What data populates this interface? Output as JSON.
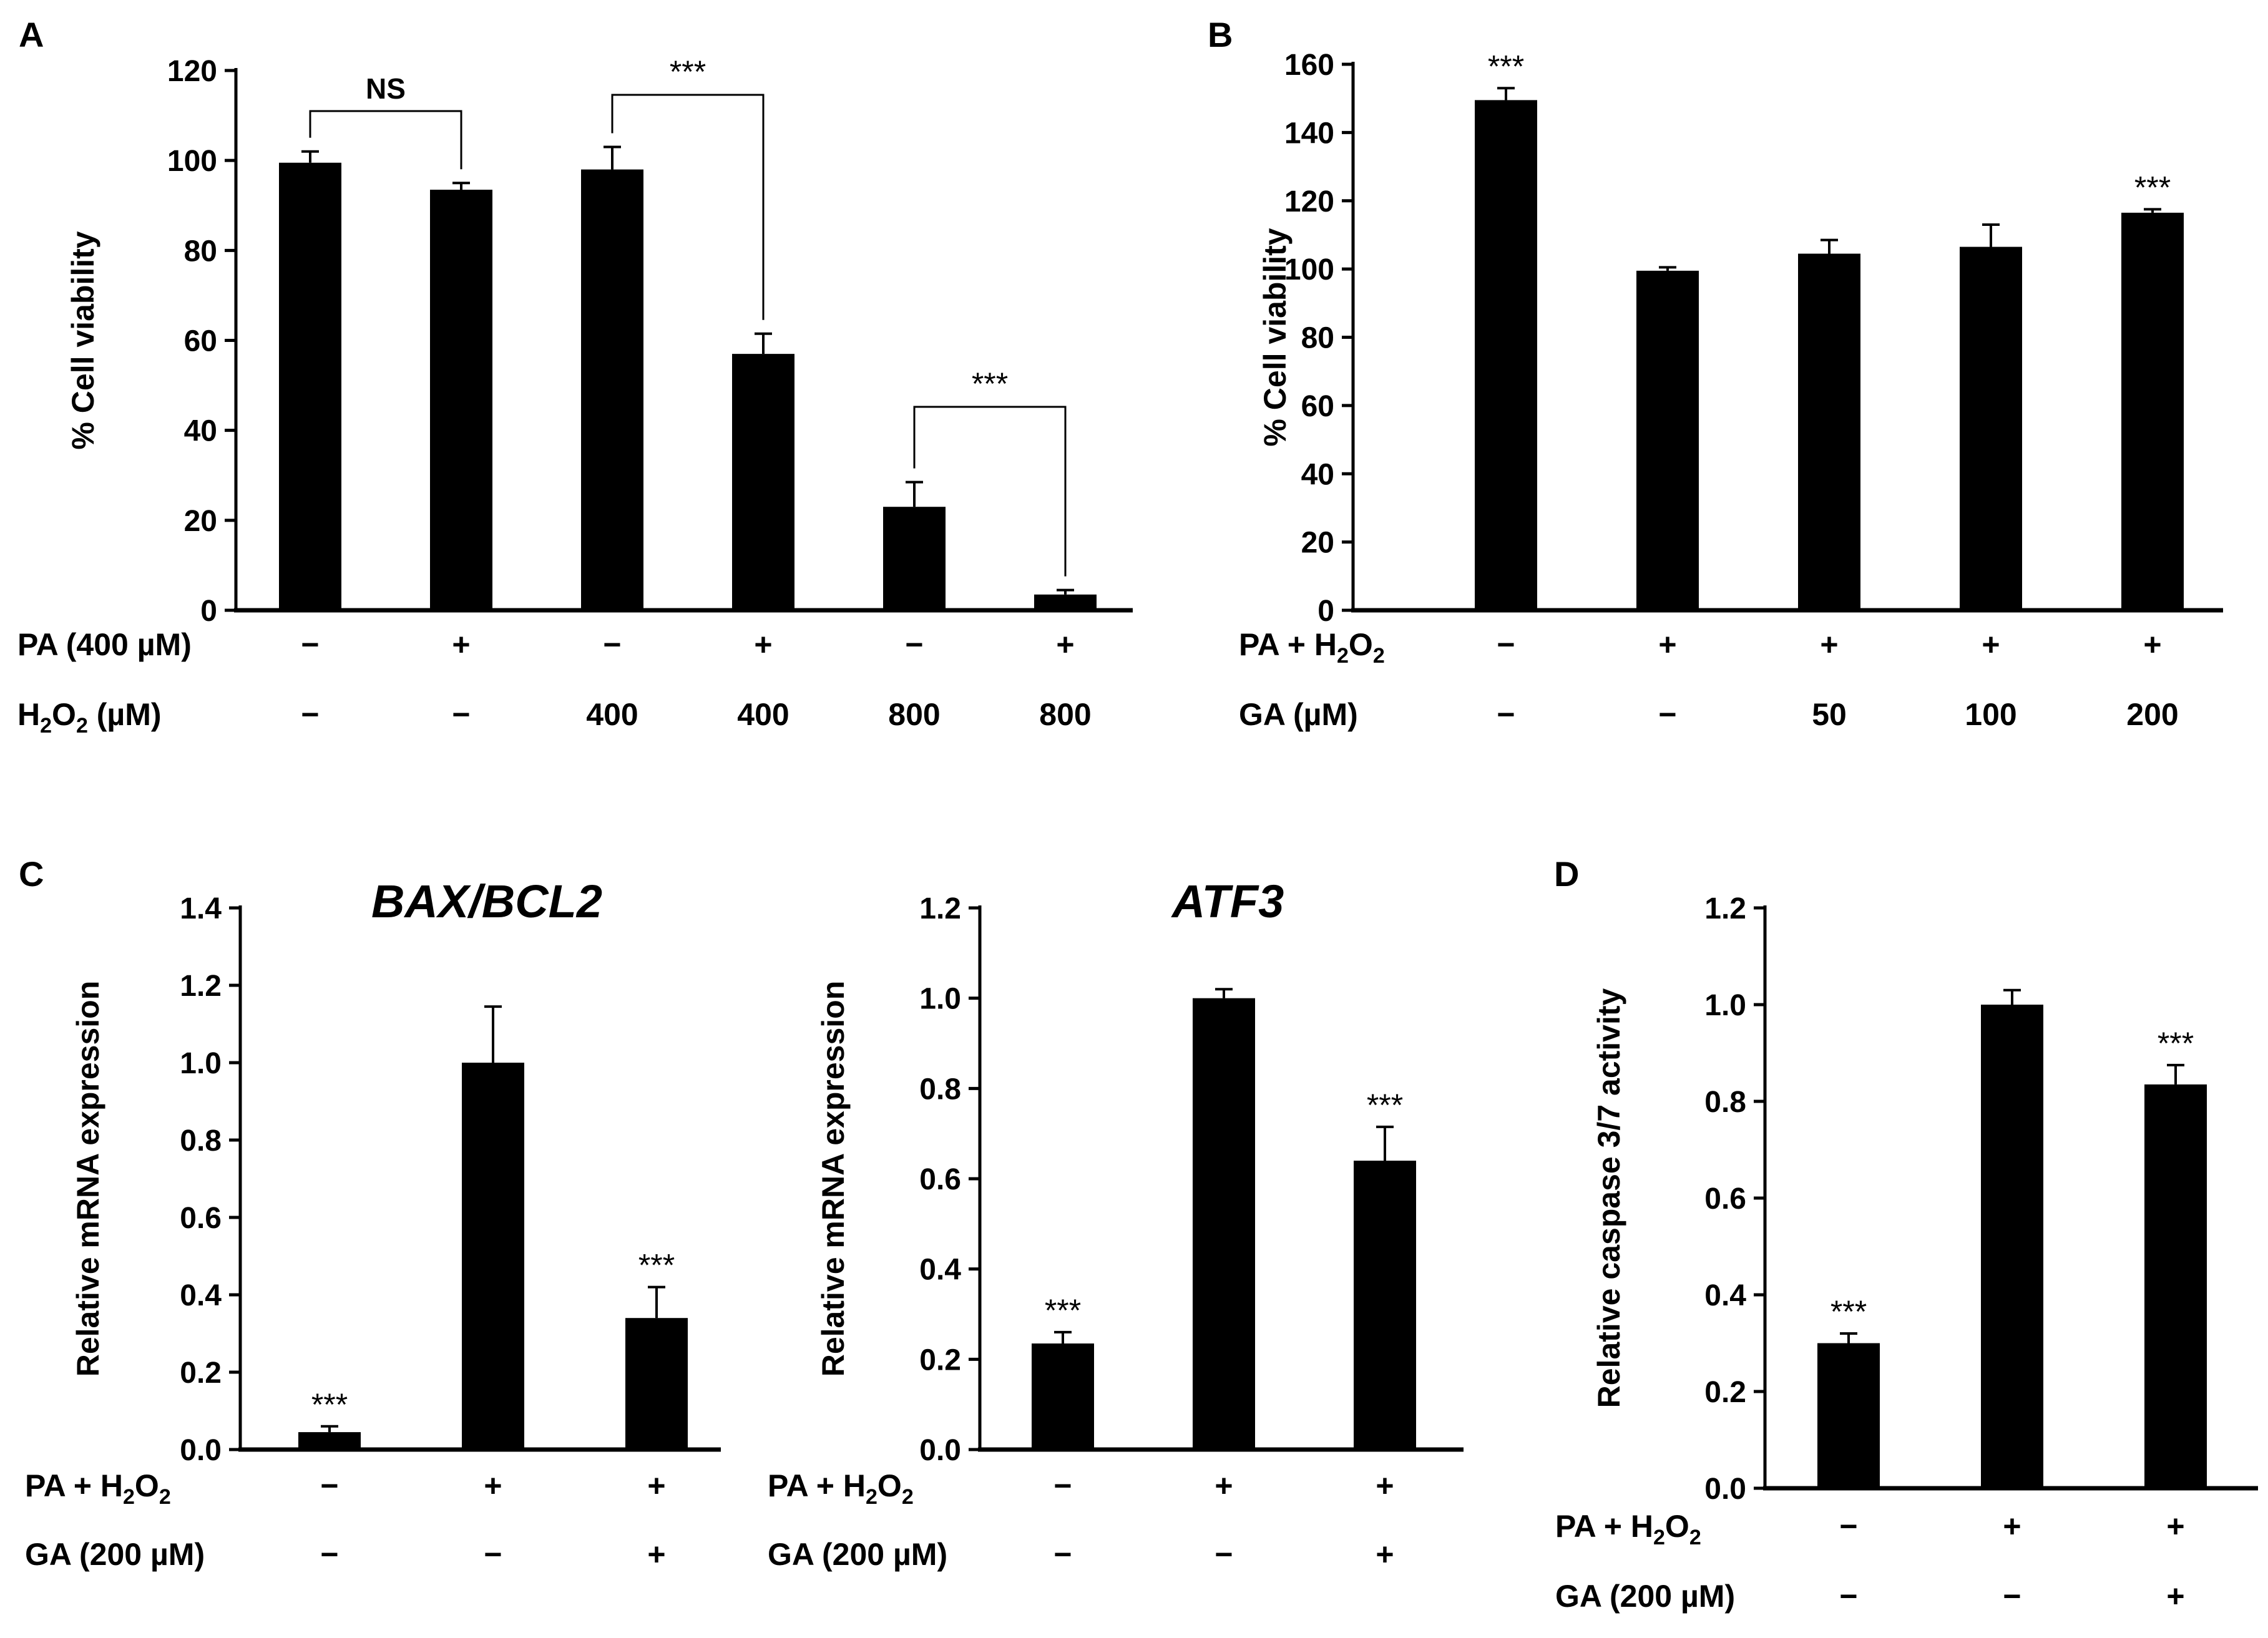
{
  "chart_data": [
    {
      "panel": "A",
      "type": "bar",
      "ylabel": "% Cell viability",
      "ylim": [
        0,
        120
      ],
      "yticks": [
        "0",
        "20",
        "40",
        "60",
        "80",
        "100",
        "120"
      ],
      "values": [
        99.5,
        93.5,
        98,
        57,
        23,
        3.5
      ],
      "errors": [
        2.5,
        1.5,
        5,
        4.5,
        5.5,
        1
      ],
      "sig": [
        "",
        "",
        "",
        "",
        "",
        ""
      ],
      "rows": [
        {
          "label": "PA (400 µM)",
          "values": [
            "−",
            "+",
            "−",
            "+",
            "−",
            "+"
          ]
        },
        {
          "label": "H2O2 (µM)",
          "label_parts": [
            "H",
            "2",
            "O",
            "2",
            " (µM)"
          ],
          "values": [
            "−",
            "−",
            "400",
            "400",
            "800",
            "800"
          ]
        }
      ],
      "brackets": [
        {
          "from": 0,
          "to": 1,
          "text": "NS"
        },
        {
          "from": 2,
          "to": 3,
          "text": "***"
        },
        {
          "from": 4,
          "to": 5,
          "text": "***"
        }
      ]
    },
    {
      "panel": "B",
      "type": "bar",
      "ylabel": "% Cell viability",
      "ylim": [
        0,
        160
      ],
      "yticks": [
        "0",
        "20",
        "40",
        "60",
        "80",
        "100",
        "120",
        "140",
        "160"
      ],
      "values": [
        149.5,
        99.5,
        104.5,
        106.5,
        116.5
      ],
      "errors": [
        3.5,
        1,
        4,
        6.5,
        1
      ],
      "sig": [
        "***",
        "",
        "",
        "",
        "***"
      ],
      "rows": [
        {
          "label": "PA + H2O2",
          "label_parts": [
            "PA + H",
            "2",
            "O",
            "2",
            ""
          ],
          "values": [
            "−",
            "+",
            "+",
            "+",
            "+"
          ]
        },
        {
          "label": "GA (µM)",
          "values": [
            "−",
            "−",
            "50",
            "100",
            "200"
          ]
        }
      ]
    },
    {
      "panel": "C",
      "type": "bar",
      "title": "BAX/BCL2",
      "ylabel": "Relative mRNA expression",
      "ylim": [
        0,
        1.4
      ],
      "yticks": [
        "0.0",
        "0.2",
        "0.4",
        "0.6",
        "0.8",
        "1.0",
        "1.2",
        "1.4"
      ],
      "values": [
        0.045,
        1.0,
        0.34
      ],
      "errors": [
        0.015,
        0.145,
        0.08
      ],
      "sig": [
        "***",
        "",
        "***"
      ],
      "rows": [
        {
          "label": "PA + H2O2",
          "label_parts": [
            "PA + H",
            "2",
            "O",
            "2",
            ""
          ],
          "values": [
            "−",
            "+",
            "+"
          ]
        },
        {
          "label": "GA (200 µM)",
          "values": [
            "−",
            "−",
            "+"
          ]
        }
      ]
    },
    {
      "panel": "",
      "type": "bar",
      "title": "ATF3",
      "ylabel": "Relative mRNA expression",
      "ylim": [
        0,
        1.2
      ],
      "yticks": [
        "0.0",
        "0.2",
        "0.4",
        "0.6",
        "0.8",
        "1.0",
        "1.2"
      ],
      "values": [
        0.235,
        1.0,
        0.64
      ],
      "errors": [
        0.025,
        0.02,
        0.075
      ],
      "sig": [
        "***",
        "",
        "***"
      ],
      "rows": [
        {
          "label": "PA + H2O2",
          "label_parts": [
            "PA + H",
            "2",
            "O",
            "2",
            ""
          ],
          "values": [
            "−",
            "+",
            "+"
          ]
        },
        {
          "label": "GA (200 µM)",
          "values": [
            "−",
            "−",
            "+"
          ]
        }
      ]
    },
    {
      "panel": "D",
      "type": "bar",
      "ylabel": "Relative caspase 3/7 activity",
      "ylim": [
        0,
        1.2
      ],
      "yticks": [
        "0.0",
        "0.2",
        "0.4",
        "0.6",
        "0.8",
        "1.0",
        "1.2"
      ],
      "values": [
        0.3,
        1.0,
        0.835
      ],
      "errors": [
        0.02,
        0.03,
        0.04
      ],
      "sig": [
        "***",
        "",
        "***"
      ],
      "rows": [
        {
          "label": "PA + H2O2",
          "label_parts": [
            "PA + H",
            "2",
            "O",
            "2",
            ""
          ],
          "values": [
            "−",
            "+",
            "+"
          ]
        },
        {
          "label": "GA (200 µM)",
          "values": [
            "−",
            "−",
            "+"
          ]
        }
      ]
    }
  ]
}
